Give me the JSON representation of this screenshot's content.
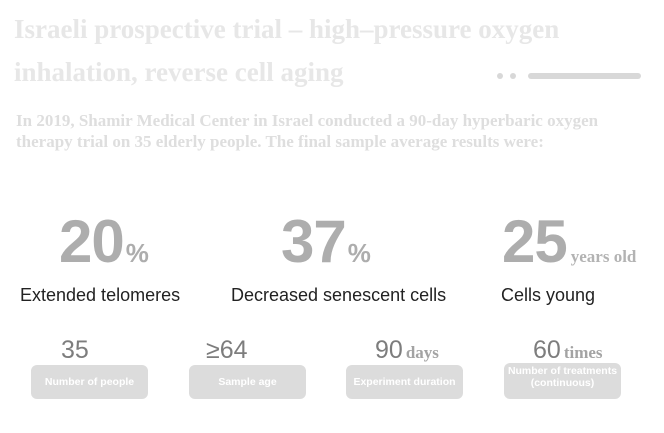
{
  "title": "Israeli prospective trial – high–pressure oxygen inhalation, reverse cell aging",
  "intro": "In 2019, Shamir Medical Center in Israel conducted a 90-day hyperbaric oxygen therapy trial on 35 elderly people. The final sample average results were:",
  "stats": [
    {
      "value": "20",
      "unit": "%",
      "label": "Extended telomeres"
    },
    {
      "value": "37",
      "unit": "%",
      "label": "Decreased senescent cells"
    },
    {
      "value": "25",
      "unit": "years old",
      "label": "Cells young"
    }
  ],
  "cards": [
    {
      "value": "35",
      "unit": "",
      "label": "Number of people"
    },
    {
      "value": "≥64",
      "unit": "",
      "label": "Sample age"
    },
    {
      "value": "90",
      "unit": "days",
      "label": "Experiment duration"
    },
    {
      "value": "60",
      "unit": "times",
      "label": "Number of treatments (continuous)"
    }
  ],
  "colors": {
    "title": "#e7e7e7",
    "big_number": "#adadad",
    "card_bg": "#dcdcdc",
    "label": "#222222"
  }
}
